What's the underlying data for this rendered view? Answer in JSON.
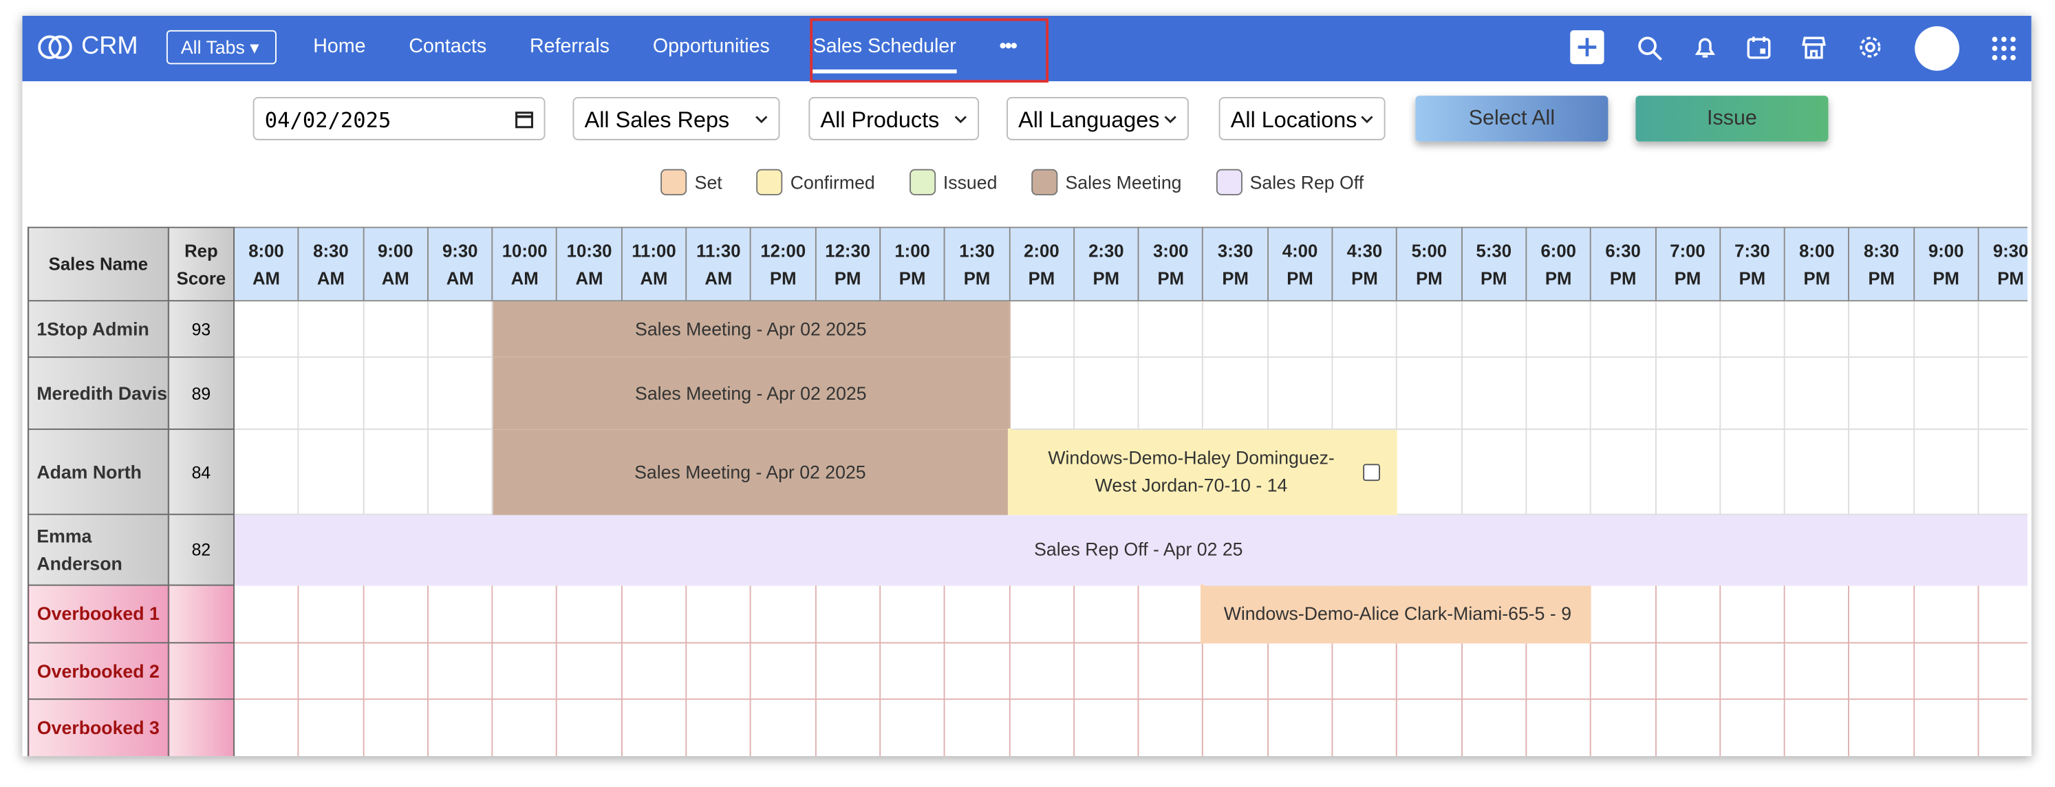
{
  "nav": {
    "brand": "CRM",
    "all_tabs": "All Tabs",
    "tabs": [
      "Home",
      "Contacts",
      "Referrals",
      "Opportunities",
      "Sales Scheduler"
    ],
    "active_tab": 4,
    "more": "•••"
  },
  "filters": {
    "date": "04/02/2025",
    "selects": [
      "All Sales Reps",
      "All Products",
      "All Languages",
      "All Locations"
    ],
    "buttons": [
      "Select All",
      "Issue"
    ]
  },
  "legend": [
    {
      "label": "Set",
      "color": "#f9d4b2"
    },
    {
      "label": "Confirmed",
      "color": "#fcf0b8"
    },
    {
      "label": "Issued",
      "color": "#e2f2c8"
    },
    {
      "label": "Sales Meeting",
      "color": "#c9ad9a"
    },
    {
      "label": "Sales Rep Off",
      "color": "#ece4fb"
    }
  ],
  "table": {
    "headers": [
      "Sales Name",
      "Rep Score"
    ],
    "slots": [
      "8:00 AM",
      "8:30 AM",
      "9:00 AM",
      "9:30 AM",
      "10:00 AM",
      "10:30 AM",
      "11:00 AM",
      "11:30 AM",
      "12:00 PM",
      "12:30 PM",
      "1:00 PM",
      "1:30 PM",
      "2:00 PM",
      "2:30 PM",
      "3:00 PM",
      "3:30 PM",
      "4:00 PM",
      "4:30 PM",
      "5:00 PM",
      "5:30 PM",
      "6:00 PM",
      "6:30 PM",
      "7:00 PM",
      "7:30 PM",
      "8:00 PM",
      "8:30 PM",
      "9:00 PM",
      "9:30 PM"
    ],
    "rows": [
      {
        "name": "1Stop Admin",
        "score": 93,
        "overbooked": false,
        "events": [
          {
            "label": "Sales Meeting - Apr 02 2025",
            "kind": 3,
            "start": "10:00 AM",
            "end": "2:00 PM"
          }
        ]
      },
      {
        "name": "Meredith Davis",
        "score": 89,
        "overbooked": false,
        "events": [
          {
            "label": "Sales Meeting - Apr 02 2025",
            "kind": 3,
            "start": "10:00 AM",
            "end": "2:00 PM"
          }
        ]
      },
      {
        "name": "Adam North",
        "score": 84,
        "overbooked": false,
        "events": [
          {
            "label": "Sales Meeting - Apr 02 2025",
            "kind": 3,
            "start": "10:00 AM",
            "end": "2:00 PM"
          },
          {
            "label": "Windows-Demo-Haley Dominguez-West Jordan-70-10 - 14",
            "kind": 1,
            "start": "2:00 PM",
            "end": "5:00 PM",
            "checkbox": true
          }
        ]
      },
      {
        "name": "Emma Anderson",
        "score": 82,
        "overbooked": false,
        "events": [
          {
            "label": "Sales Rep Off - Apr 02 25",
            "kind": 4,
            "start": "8:00 AM"
          }
        ]
      },
      {
        "name": "Overbooked 1",
        "overbooked": true,
        "events": [
          {
            "label": "Windows-Demo-Alice Clark-Miami-65-5 - 9",
            "kind": 0,
            "start": "3:30 PM",
            "end": "6:30 PM"
          }
        ]
      },
      {
        "name": "Overbooked 2",
        "overbooked": true,
        "events": []
      },
      {
        "name": "Overbooked 3",
        "overbooked": true,
        "events": []
      }
    ]
  }
}
